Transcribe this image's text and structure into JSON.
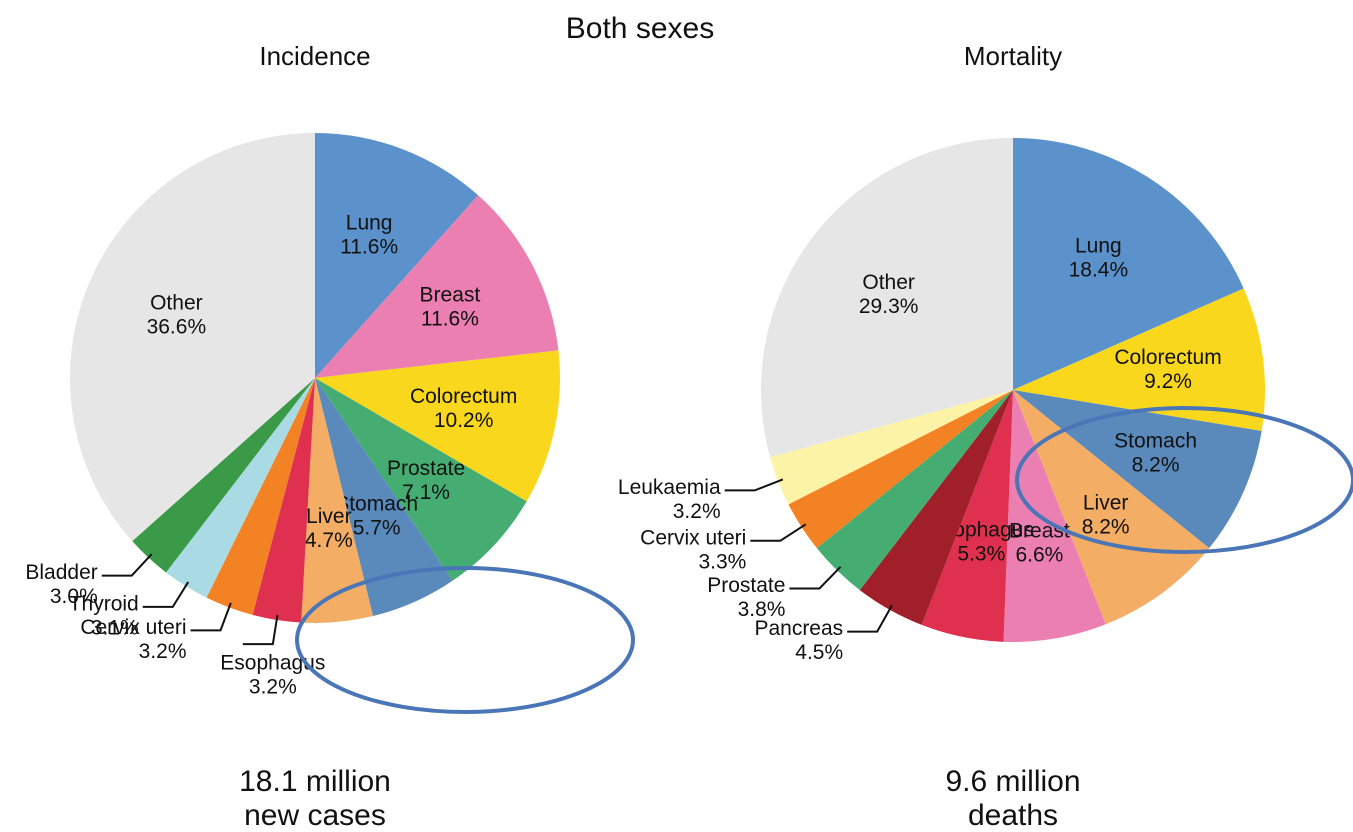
{
  "title": "Both sexes",
  "chart_data": [
    {
      "type": "pie",
      "title": "Incidence",
      "categories": [
        "Lung",
        "Breast",
        "Colorectum",
        "Prostate",
        "Stomach",
        "Liver",
        "Esophagus",
        "Cervix uteri",
        "Thyroid",
        "Bladder",
        "Other"
      ],
      "values": [
        11.6,
        11.6,
        10.2,
        7.1,
        5.7,
        4.7,
        3.2,
        3.2,
        3.1,
        3.0,
        36.6
      ],
      "value_labels": [
        "11.6%",
        "11.6%",
        "10.2%",
        "7.1%",
        "5.7%",
        "4.7%",
        "3.2%",
        "3.2%",
        "3.1%",
        "3.0%",
        "36.6%"
      ],
      "colors": [
        "#5b92cc",
        "#ec7fb2",
        "#f9d71c",
        "#46ad72",
        "#5a89bc",
        "#f3ad65",
        "#e03050",
        "#f38225",
        "#aadbe5",
        "#3b9a47",
        "#e6e6e6"
      ],
      "footer": [
        "18.1 million",
        "new cases"
      ]
    },
    {
      "type": "pie",
      "title": "Mortality",
      "categories": [
        "Lung",
        "Colorectum",
        "Stomach",
        "Liver",
        "Breast",
        "Esophagus",
        "Pancreas",
        "Prostate",
        "Cervix uteri",
        "Leukaemia",
        "Other"
      ],
      "values": [
        18.4,
        9.2,
        8.2,
        8.2,
        6.6,
        5.3,
        4.5,
        3.8,
        3.3,
        3.2,
        29.3
      ],
      "value_labels": [
        "18.4%",
        "9.2%",
        "8.2%",
        "8.2%",
        "6.6%",
        "5.3%",
        "4.5%",
        "3.8%",
        "3.3%",
        "3.2%",
        "29.3%"
      ],
      "colors": [
        "#5b92cc",
        "#f9d71c",
        "#5a89bc",
        "#f3ad65",
        "#ec7fb2",
        "#e03050",
        "#a01f28",
        "#46ad72",
        "#f38225",
        "#fcf3a6",
        "#e6e6e6"
      ],
      "footer": [
        "9.6 million",
        "deaths"
      ]
    }
  ]
}
